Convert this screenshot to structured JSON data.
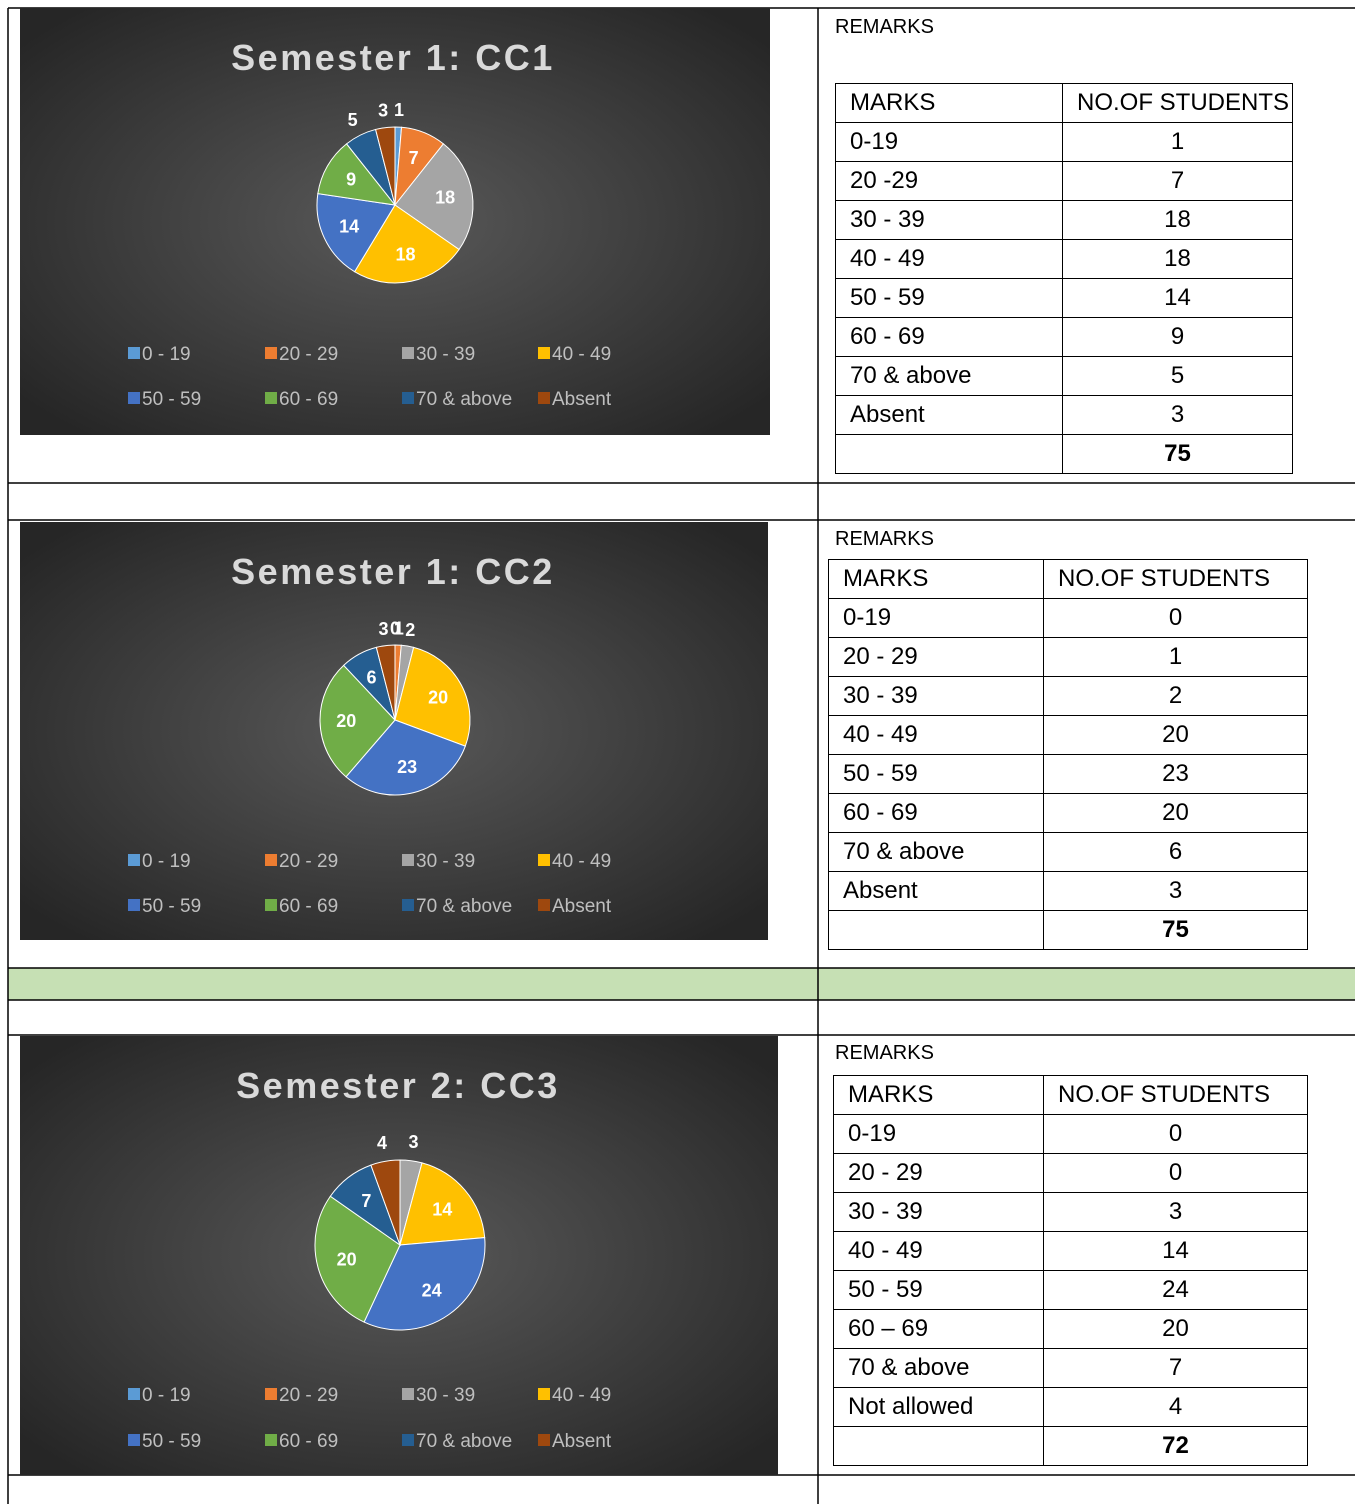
{
  "chart_data": [
    {
      "type": "pie",
      "title": "Semester 1: CC1",
      "categories": [
        "0 - 19",
        "20 - 29",
        "30 - 39",
        "40 - 49",
        "50 - 59",
        "60 - 69",
        "70 & above",
        "Absent"
      ],
      "values": [
        1,
        7,
        18,
        18,
        14,
        9,
        5,
        3
      ],
      "colors": [
        "#5b9bd5",
        "#ed7d31",
        "#a5a5a5",
        "#ffc000",
        "#4472c4",
        "#70ad47",
        "#255e91",
        "#9e480e"
      ],
      "zero_labels": true
    },
    {
      "type": "pie",
      "title": "Semester 1: CC2",
      "categories": [
        "0 - 19",
        "20 - 29",
        "30 - 39",
        "40 - 49",
        "50 - 59",
        "60 - 69",
        "70 & above",
        "Absent"
      ],
      "values": [
        0,
        1,
        2,
        20,
        23,
        20,
        6,
        3
      ],
      "colors": [
        "#5b9bd5",
        "#ed7d31",
        "#a5a5a5",
        "#ffc000",
        "#4472c4",
        "#70ad47",
        "#255e91",
        "#9e480e"
      ],
      "zero_labels": true
    },
    {
      "type": "pie",
      "title": "Semester 2: CC3",
      "categories": [
        "0 - 19",
        "20 - 29",
        "30 - 39",
        "40 - 49",
        "50 - 59",
        "60 - 69",
        "70 & above",
        "Absent"
      ],
      "values": [
        0,
        0,
        3,
        14,
        24,
        20,
        7,
        4
      ],
      "colors": [
        "#5b9bd5",
        "#ed7d31",
        "#a5a5a5",
        "#ffc000",
        "#4472c4",
        "#70ad47",
        "#255e91",
        "#9e480e"
      ],
      "zero_labels": false
    }
  ],
  "tables": [
    {
      "remarks": "REMARKS",
      "header": [
        "MARKS",
        "NO.OF STUDENTS"
      ],
      "rows": [
        [
          "0-19",
          1
        ],
        [
          "20 -29",
          7
        ],
        [
          "30 - 39",
          18
        ],
        [
          "40 - 49",
          18
        ],
        [
          "50 - 59",
          14
        ],
        [
          "60 - 69",
          9
        ],
        [
          "70 & above",
          5
        ],
        [
          "Absent",
          3
        ]
      ],
      "total": 75
    },
    {
      "remarks": "REMARKS",
      "header": [
        "MARKS",
        "NO.OF STUDENTS"
      ],
      "rows": [
        [
          "0-19",
          0
        ],
        [
          "20 - 29",
          1
        ],
        [
          "30 - 39",
          2
        ],
        [
          "40 - 49",
          20
        ],
        [
          "50 - 59",
          23
        ],
        [
          "60 - 69",
          20
        ],
        [
          "70 & above",
          6
        ],
        [
          "Absent",
          3
        ]
      ],
      "total": 75
    },
    {
      "remarks": "REMARKS",
      "header": [
        "MARKS",
        "NO.OF STUDENTS"
      ],
      "rows": [
        [
          "0-19",
          0
        ],
        [
          "20 - 29",
          0
        ],
        [
          "30 - 39",
          3
        ],
        [
          "40 - 49",
          14
        ],
        [
          "50 - 59",
          24
        ],
        [
          "60 – 69",
          20
        ],
        [
          "70 & above",
          7
        ],
        [
          "Not allowed",
          4
        ]
      ],
      "total": 72
    }
  ]
}
